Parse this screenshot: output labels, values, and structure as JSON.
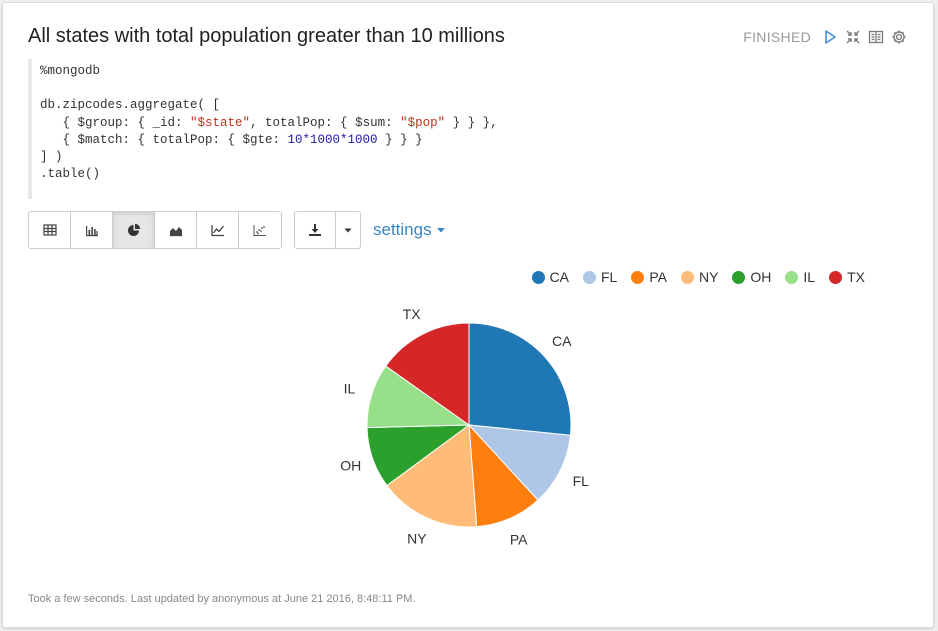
{
  "paragraph": {
    "title": "All states with total population greater than 10 millions",
    "status": "FINISHED",
    "footer": "Took a few seconds. Last updated by anonymous at June 21 2016, 8:48:11 PM."
  },
  "icons": {
    "run": "play-icon",
    "collapse": "collapse-icon",
    "book": "book-icon",
    "settings": "gear-icon"
  },
  "code": {
    "magic": "%mongodb",
    "l1": "db.zipcodes.aggregate( [",
    "l2_a": "   { $group: { _id: ",
    "l2_str1": "\"$state\"",
    "l2_b": ", totalPop: { $sum: ",
    "l2_str2": "\"$pop\"",
    "l2_c": " } } },",
    "l3_a": "   { $match: { totalPop: { $gte: ",
    "l3_var": "10*1000*1000",
    "l3_b": " } } }",
    "l4": "] )",
    "l5": ".table()"
  },
  "toolbar": {
    "views": [
      "table-icon",
      "bar-chart-icon",
      "pie-chart-icon",
      "area-chart-icon",
      "line-chart-icon",
      "scatter-chart-icon"
    ],
    "active": "pie-chart-icon",
    "settings_label": "settings"
  },
  "chart_data": {
    "type": "pie",
    "categories": [
      "CA",
      "FL",
      "PA",
      "NY",
      "OH",
      "IL",
      "TX"
    ],
    "values": [
      29760021,
      12937926,
      11881643,
      17990455,
      10847115,
      11430602,
      16986510
    ],
    "colors": [
      "#1f77b4",
      "#aec7e8",
      "#ff7f0e",
      "#ffbb78",
      "#2ca02c",
      "#98df8a",
      "#d62728"
    ],
    "legend": "top-right"
  }
}
